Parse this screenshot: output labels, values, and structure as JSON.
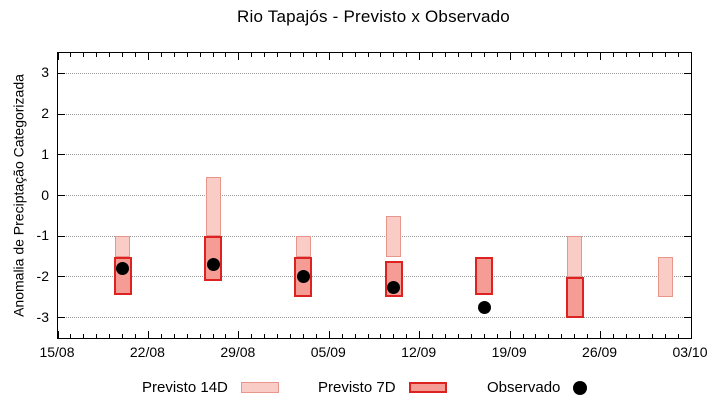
{
  "title": "Rio Tapajós - Previsto x Observado",
  "y_axis": {
    "label": "Anomalia de Preciptação Categorizada",
    "ticks": [
      3,
      2,
      1,
      0,
      -1,
      -2,
      -3
    ],
    "min": -3.5,
    "max": 3.5
  },
  "x_axis": {
    "tick_labels": [
      "15/08",
      "22/08",
      "29/08",
      "05/09",
      "12/09",
      "19/09",
      "26/09",
      "03/10"
    ],
    "days_between_major": 7,
    "total_days": 49
  },
  "legend": {
    "items": [
      {
        "label": "Previsto 14D",
        "swatch": "box-14d"
      },
      {
        "label": "Previsto 7D",
        "swatch": "box-7d"
      },
      {
        "label": "Observado",
        "swatch": "dot"
      }
    ]
  },
  "colors": {
    "p14_fill": "#f9cdc5",
    "p14_border": "#e8968b",
    "p7_fill": "#f59d95",
    "p7_border": "#dd2222",
    "observed": "#000000",
    "grid": "#9a9a9a",
    "frame": "#000000"
  },
  "chart_data": {
    "type": "bar",
    "subtype": "floating range boxes (forecast) + scatter (observed)",
    "title": "Rio Tapajós - Previsto x Observado",
    "ylabel": "Anomalia de Preciptação Categorizada",
    "ylim": [
      -3.5,
      3.5
    ],
    "x_range": [
      "15/08",
      "03/10"
    ],
    "grid": "horizontal dotted lines at integer y values",
    "legend_entries": [
      "Previsto 14D",
      "Previsto 7D",
      "Observado"
    ],
    "groups": [
      {
        "date": "20/08",
        "day_offset": 5,
        "previsto_14d": [
          -1.0,
          -1.5
        ],
        "previsto_7d": [
          -1.5,
          -2.45
        ],
        "observado": -1.8
      },
      {
        "date": "27/08",
        "day_offset": 12,
        "previsto_14d": [
          0.45,
          -1.0
        ],
        "previsto_7d": [
          -1.0,
          -2.1
        ],
        "observado": -1.7
      },
      {
        "date": "03/09",
        "day_offset": 19,
        "previsto_14d": [
          -1.0,
          -1.5
        ],
        "previsto_7d": [
          -1.5,
          -2.5
        ],
        "observado": -2.0
      },
      {
        "date": "10/09",
        "day_offset": 26,
        "previsto_14d": [
          -0.5,
          -1.5
        ],
        "previsto_7d": [
          -1.6,
          -2.5
        ],
        "observado": -2.25
      },
      {
        "date": "17/09",
        "day_offset": 33,
        "previsto_14d": null,
        "previsto_7d": [
          -1.5,
          -2.45
        ],
        "observado": -2.75
      },
      {
        "date": "24/09",
        "day_offset": 40,
        "previsto_14d": [
          -1.0,
          -2.0
        ],
        "previsto_7d": [
          -2.0,
          -3.0
        ],
        "observado": null
      },
      {
        "date": "01/10",
        "day_offset": 47,
        "previsto_14d": [
          -1.5,
          -2.5
        ],
        "previsto_7d": null,
        "observado": null
      }
    ]
  }
}
